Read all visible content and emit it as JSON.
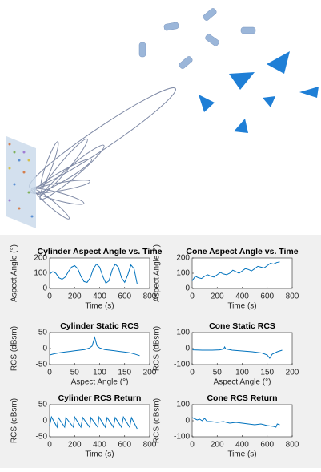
{
  "chart_data": [
    {
      "type": "line",
      "title": "Cylinder Aspect Angle vs. Time",
      "xlabel": "Time (s)",
      "ylabel": "Aspect Angle (°)",
      "color": "#0072bd",
      "x": [
        0,
        25,
        50,
        75,
        100,
        125,
        150,
        175,
        200,
        225,
        250,
        275,
        300,
        325,
        350,
        375,
        400,
        425,
        450,
        475,
        500,
        525,
        550,
        575,
        600,
        625,
        650,
        675,
        700
      ],
      "values": [
        95,
        110,
        100,
        70,
        60,
        75,
        110,
        140,
        150,
        130,
        80,
        45,
        40,
        70,
        130,
        160,
        140,
        80,
        35,
        50,
        120,
        160,
        140,
        70,
        40,
        90,
        155,
        130,
        30
      ],
      "xlim": [
        0,
        800
      ],
      "ylim": [
        0,
        200
      ],
      "xticks": [
        0,
        200,
        400,
        600,
        800
      ],
      "yticks": [
        0,
        100,
        200
      ]
    },
    {
      "type": "line",
      "title": "Cone Aspect Angle vs. Time",
      "xlabel": "Time (s)",
      "ylabel": "Aspect Angle (°)",
      "color": "#0072bd",
      "x": [
        0,
        25,
        50,
        75,
        100,
        125,
        150,
        175,
        200,
        225,
        250,
        275,
        300,
        325,
        350,
        375,
        400,
        425,
        450,
        475,
        500,
        525,
        550,
        575,
        600,
        625,
        650,
        675,
        700
      ],
      "values": [
        50,
        80,
        70,
        65,
        80,
        90,
        80,
        75,
        90,
        105,
        95,
        90,
        100,
        120,
        110,
        100,
        115,
        130,
        125,
        115,
        130,
        145,
        140,
        135,
        150,
        165,
        160,
        170,
        175
      ],
      "xlim": [
        0,
        800
      ],
      "ylim": [
        0,
        200
      ],
      "xticks": [
        0,
        200,
        400,
        600,
        800
      ],
      "yticks": [
        0,
        100,
        200
      ]
    },
    {
      "type": "line",
      "title": "Cylinder Static RCS",
      "xlabel": "Aspect Angle (°)",
      "ylabel": "RCS (dBsm)",
      "color": "#0072bd",
      "x": [
        0,
        10,
        20,
        30,
        40,
        50,
        60,
        70,
        80,
        85,
        90,
        95,
        100,
        110,
        120,
        130,
        140,
        150,
        160,
        170,
        180
      ],
      "values": [
        -20,
        -16,
        -13,
        -11,
        -9,
        -7,
        -5,
        -3,
        2,
        8,
        35,
        8,
        2,
        -3,
        -5,
        -7,
        -9,
        -11,
        -13,
        -17,
        -22
      ],
      "xlim": [
        0,
        200
      ],
      "ylim": [
        -50,
        50
      ],
      "xticks": [
        0,
        50,
        100,
        150,
        200
      ],
      "yticks": [
        -50,
        0,
        50
      ]
    },
    {
      "type": "line",
      "title": "Cone Static RCS",
      "xlabel": "Aspect Angle (°)",
      "ylabel": "RCS (dBsm)",
      "color": "#0072bd",
      "x": [
        0,
        2,
        20,
        40,
        55,
        63,
        65,
        67,
        80,
        100,
        120,
        140,
        150,
        155,
        160,
        170,
        180
      ],
      "values": [
        0,
        -8,
        -10,
        -10,
        -8,
        -2,
        10,
        -2,
        -10,
        -15,
        -20,
        -28,
        -40,
        -60,
        -35,
        -20,
        -10
      ],
      "xlim": [
        0,
        200
      ],
      "ylim": [
        -100,
        100
      ],
      "xticks": [
        0,
        50,
        100,
        150,
        200
      ],
      "yticks": [
        -100,
        0,
        100
      ]
    },
    {
      "type": "line",
      "title": "Cylinder RCS Return",
      "xlabel": "Time (s)",
      "ylabel": "RCS (dBsm)",
      "color": "#0072bd",
      "x": [
        0,
        15,
        60,
        70,
        120,
        130,
        190,
        200,
        250,
        265,
        320,
        330,
        385,
        395,
        445,
        460,
        510,
        525,
        575,
        590,
        640,
        655,
        700
      ],
      "values": [
        -15,
        12,
        -20,
        10,
        -20,
        10,
        -20,
        12,
        -20,
        10,
        -20,
        10,
        -20,
        12,
        -20,
        10,
        -20,
        10,
        -20,
        12,
        -20,
        10,
        -25
      ],
      "xlim": [
        0,
        800
      ],
      "ylim": [
        -50,
        50
      ],
      "xticks": [
        0,
        200,
        400,
        600,
        800
      ],
      "yticks": [
        -50,
        0,
        50
      ]
    },
    {
      "type": "line",
      "title": "Cone RCS Return",
      "xlabel": "Time (s)",
      "ylabel": "RCS (dBsm)",
      "color": "#0072bd",
      "x": [
        0,
        40,
        60,
        80,
        100,
        120,
        150,
        200,
        250,
        300,
        350,
        400,
        450,
        500,
        550,
        600,
        650,
        670,
        680,
        700
      ],
      "values": [
        20,
        5,
        10,
        0,
        15,
        -5,
        -5,
        -10,
        -5,
        -15,
        -10,
        -15,
        -20,
        -25,
        -20,
        -30,
        -35,
        -40,
        -20,
        -25
      ],
      "xlim": [
        0,
        800
      ],
      "ylim": [
        -100,
        100
      ],
      "xticks": [
        0,
        200,
        400,
        600,
        800
      ],
      "yticks": [
        -100,
        0,
        100
      ]
    }
  ]
}
